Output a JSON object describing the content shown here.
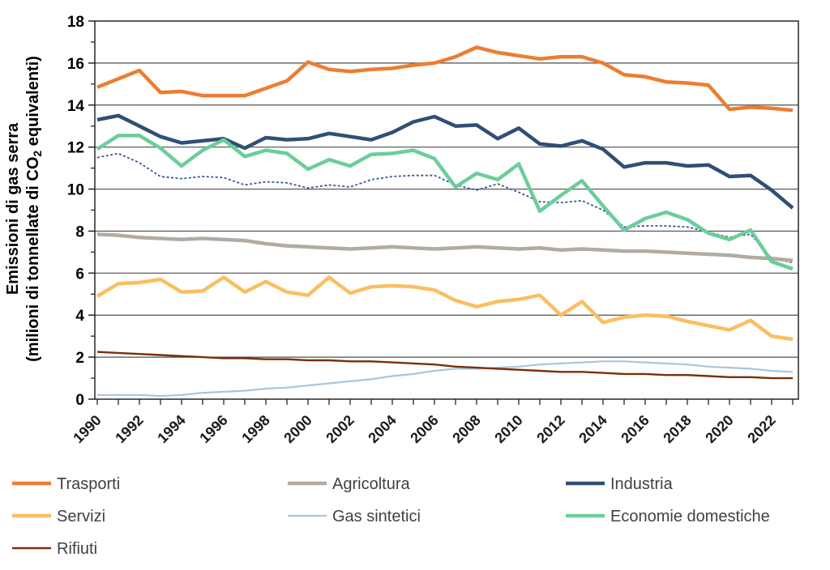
{
  "chart_data": {
    "type": "line",
    "ylabel_line1": "Emissioni di gas serra",
    "ylabel_line2_parts": {
      "pre": "(milioni di tonnellate di CO",
      "sub": "2",
      "post": " equivalenti)"
    },
    "x": [
      1990,
      1991,
      1992,
      1993,
      1994,
      1995,
      1996,
      1997,
      1998,
      1999,
      2000,
      2001,
      2002,
      2003,
      2004,
      2005,
      2006,
      2007,
      2008,
      2009,
      2010,
      2011,
      2012,
      2013,
      2014,
      2015,
      2016,
      2017,
      2018,
      2019,
      2020,
      2021,
      2022,
      2023
    ],
    "xtick_labels": [
      "1990",
      "1992",
      "1994",
      "1996",
      "1998",
      "2000",
      "2002",
      "2004",
      "2006",
      "2008",
      "2010",
      "2012",
      "2014",
      "2016",
      "2018",
      "2020",
      "2022"
    ],
    "ytick_labels": [
      "0",
      "2",
      "4",
      "6",
      "8",
      "10",
      "12",
      "14",
      "16",
      "18"
    ],
    "ylim": [
      0,
      18
    ],
    "grid": "horizontal-major",
    "legend_position": "bottom",
    "series": [
      {
        "key": "unlabeled_dashed",
        "name": "",
        "in_legend": false,
        "color": "#3a5795",
        "width": 1.8,
        "dash": "3,2.5",
        "values": [
          11.5,
          11.7,
          11.25,
          10.6,
          10.5,
          10.6,
          10.55,
          10.2,
          10.35,
          10.3,
          10.05,
          10.2,
          10.1,
          10.45,
          10.6,
          10.65,
          10.65,
          10.2,
          9.95,
          10.25,
          9.85,
          9.4,
          9.35,
          9.45,
          9.0,
          8.2,
          8.25,
          8.25,
          8.2,
          7.95,
          7.7,
          7.85,
          6.7,
          6.5
        ]
      },
      {
        "key": "gas_sintetici",
        "name": "Gas sintetici",
        "in_legend": true,
        "legend_col": 1,
        "legend_row": 1,
        "color": "#a9c6dc",
        "width": 2.2,
        "dash": null,
        "values": [
          0.2,
          0.2,
          0.2,
          0.15,
          0.2,
          0.3,
          0.35,
          0.4,
          0.5,
          0.55,
          0.65,
          0.75,
          0.85,
          0.95,
          1.1,
          1.2,
          1.35,
          1.45,
          1.45,
          1.5,
          1.55,
          1.65,
          1.7,
          1.75,
          1.8,
          1.8,
          1.75,
          1.7,
          1.65,
          1.55,
          1.5,
          1.45,
          1.35,
          1.3
        ]
      },
      {
        "key": "rifiuti",
        "name": "Rifiuti",
        "in_legend": true,
        "legend_col": 0,
        "legend_row": 2,
        "color": "#7b2e0c",
        "width": 2.4,
        "dash": null,
        "values": [
          2.25,
          2.2,
          2.15,
          2.1,
          2.05,
          2.0,
          1.95,
          1.95,
          1.9,
          1.9,
          1.85,
          1.85,
          1.8,
          1.8,
          1.75,
          1.7,
          1.65,
          1.55,
          1.5,
          1.45,
          1.4,
          1.35,
          1.3,
          1.3,
          1.25,
          1.2,
          1.2,
          1.15,
          1.15,
          1.1,
          1.05,
          1.05,
          1.0,
          1.0
        ]
      },
      {
        "key": "agricoltura",
        "name": "Agricoltura",
        "in_legend": true,
        "legend_col": 1,
        "legend_row": 0,
        "color": "#b3aba2",
        "width": 4.5,
        "dash": null,
        "values": [
          7.85,
          7.8,
          7.7,
          7.65,
          7.6,
          7.65,
          7.6,
          7.55,
          7.4,
          7.3,
          7.25,
          7.2,
          7.15,
          7.2,
          7.25,
          7.2,
          7.15,
          7.2,
          7.25,
          7.2,
          7.15,
          7.2,
          7.1,
          7.15,
          7.1,
          7.05,
          7.05,
          7.0,
          6.95,
          6.9,
          6.85,
          6.75,
          6.7,
          6.6
        ]
      },
      {
        "key": "servizi",
        "name": "Servizi",
        "in_legend": true,
        "legend_col": 0,
        "legend_row": 1,
        "color": "#f9bf60",
        "width": 4.5,
        "dash": null,
        "values": [
          4.9,
          5.5,
          5.55,
          5.7,
          5.1,
          5.15,
          5.8,
          5.1,
          5.6,
          5.1,
          4.95,
          5.8,
          5.05,
          5.35,
          5.4,
          5.35,
          5.2,
          4.7,
          4.4,
          4.65,
          4.75,
          4.95,
          4.0,
          4.65,
          3.65,
          3.9,
          4.0,
          3.95,
          3.7,
          3.5,
          3.3,
          3.75,
          3.0,
          2.85
        ]
      },
      {
        "key": "industria",
        "name": "Industria",
        "in_legend": true,
        "legend_col": 2,
        "legend_row": 0,
        "color": "#2f4f74",
        "width": 4.5,
        "dash": null,
        "values": [
          13.3,
          13.5,
          13.0,
          12.5,
          12.2,
          12.3,
          12.4,
          11.95,
          12.45,
          12.35,
          12.4,
          12.65,
          12.5,
          12.35,
          12.7,
          13.2,
          13.45,
          13.0,
          13.05,
          12.4,
          12.9,
          12.15,
          12.05,
          12.3,
          11.9,
          11.05,
          11.25,
          11.25,
          11.1,
          11.15,
          10.6,
          10.65,
          9.95,
          9.1
        ]
      },
      {
        "key": "economie_domestiche",
        "name": "Economie domestiche",
        "in_legend": true,
        "legend_col": 2,
        "legend_row": 1,
        "color": "#6ccd9a",
        "width": 4.5,
        "dash": null,
        "values": [
          11.9,
          12.55,
          12.55,
          11.95,
          11.1,
          11.85,
          12.35,
          11.55,
          11.85,
          11.7,
          10.95,
          11.4,
          11.1,
          11.65,
          11.7,
          11.85,
          11.45,
          10.1,
          10.75,
          10.45,
          11.2,
          8.95,
          9.7,
          10.4,
          9.2,
          8.05,
          8.6,
          8.9,
          8.55,
          7.9,
          7.6,
          8.05,
          6.55,
          6.2
        ]
      },
      {
        "key": "trasporti",
        "name": "Trasporti",
        "in_legend": true,
        "legend_col": 0,
        "legend_row": 0,
        "color": "#ed7d31",
        "width": 4.5,
        "dash": null,
        "values": [
          14.85,
          15.25,
          15.65,
          14.6,
          14.65,
          14.45,
          14.45,
          14.45,
          14.8,
          15.15,
          16.05,
          15.7,
          15.6,
          15.7,
          15.75,
          15.9,
          16.0,
          16.3,
          16.75,
          16.5,
          16.35,
          16.2,
          16.3,
          16.3,
          16.0,
          15.45,
          15.35,
          15.1,
          15.05,
          14.95,
          13.8,
          13.9,
          13.85,
          13.75
        ]
      }
    ],
    "colors": {
      "grid": "#4d4d4d",
      "frame": "#262626",
      "background": "#ffffff"
    }
  }
}
